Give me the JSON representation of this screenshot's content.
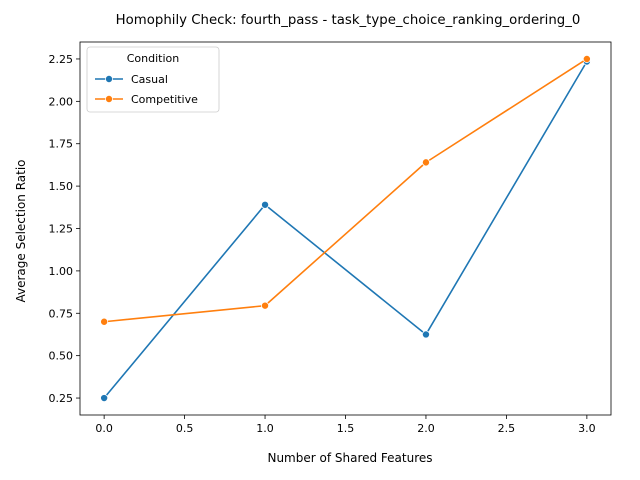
{
  "chart_data": {
    "type": "line",
    "title": "Homophily Check: fourth_pass - task_type_choice_ranking_ordering_0",
    "xlabel": "Number of Shared Features",
    "ylabel": "Average Selection Ratio",
    "xlim": [
      -0.15,
      3.15
    ],
    "ylim": [
      0.15,
      2.35
    ],
    "xticks": [
      0.0,
      0.5,
      1.0,
      1.5,
      2.0,
      2.5,
      3.0
    ],
    "xtick_labels": [
      "0.0",
      "0.5",
      "1.0",
      "1.5",
      "2.0",
      "2.5",
      "3.0"
    ],
    "yticks": [
      0.25,
      0.5,
      0.75,
      1.0,
      1.25,
      1.5,
      1.75,
      2.0,
      2.25
    ],
    "ytick_labels": [
      "0.25",
      "0.50",
      "0.75",
      "1.00",
      "1.25",
      "1.50",
      "1.75",
      "2.00",
      "2.25"
    ],
    "grid": false,
    "legend": {
      "title": "Condition",
      "placement": "top-left"
    },
    "series": [
      {
        "name": "Casual",
        "color": "#1f77b4",
        "x": [
          0,
          1,
          2,
          3
        ],
        "y": [
          0.25,
          1.39,
          0.625,
          2.235
        ]
      },
      {
        "name": "Competitive",
        "color": "#ff7f0e",
        "x": [
          0,
          1,
          2,
          3
        ],
        "y": [
          0.7,
          0.795,
          1.64,
          2.25
        ]
      }
    ]
  }
}
